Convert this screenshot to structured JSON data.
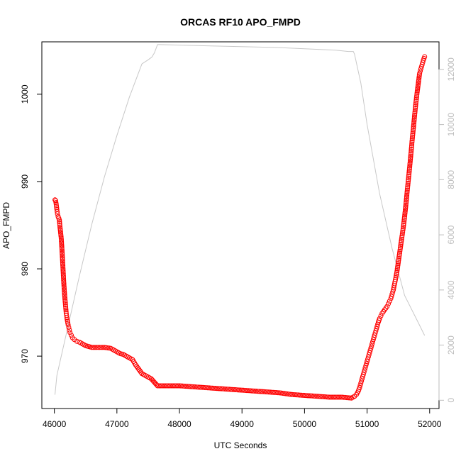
{
  "chart_data": {
    "type": "scatter",
    "title": "ORCAS RF10 APO_FMPD",
    "xlabel": "UTC Seconds",
    "ylabel": "APO_FMPD",
    "xlim": [
      45800,
      52150
    ],
    "ylim": [
      964.0,
      1006.0
    ],
    "y2lim": [
      -300,
      13000
    ],
    "x_ticks": [
      46000,
      47000,
      48000,
      49000,
      50000,
      51000,
      52000
    ],
    "y_ticks": [
      970,
      980,
      990,
      1000
    ],
    "y2_ticks": [
      0,
      2000,
      4000,
      6000,
      8000,
      10000,
      12000
    ],
    "grid": false,
    "colors": {
      "points": "#ff0000",
      "altitude_line": "#c8c8c8",
      "right_axis": "#bdbdbd"
    },
    "series": [
      {
        "type": "scatter",
        "axis": "left",
        "points": [
          [
            46010,
            987.9
          ],
          [
            46020,
            987.8
          ],
          [
            46030,
            987.4
          ],
          [
            46040,
            986.8
          ],
          [
            46050,
            986.3
          ],
          [
            46060,
            986.0
          ],
          [
            46080,
            985.6
          ],
          [
            46090,
            984.8
          ],
          [
            46110,
            983.5
          ],
          [
            46120,
            982.4
          ],
          [
            46130,
            981.1
          ],
          [
            46140,
            979.8
          ],
          [
            46150,
            978.5
          ],
          [
            46160,
            977.4
          ],
          [
            46170,
            976.5
          ],
          [
            46180,
            975.7
          ],
          [
            46190,
            974.9
          ],
          [
            46200,
            974.4
          ],
          [
            46210,
            974.0
          ],
          [
            46220,
            973.6
          ],
          [
            46230,
            973.3
          ],
          [
            46240,
            973.0
          ],
          [
            46250,
            972.7
          ],
          [
            46270,
            972.4
          ],
          [
            46290,
            972.1
          ],
          [
            46320,
            971.9
          ],
          [
            46360,
            971.7
          ],
          [
            46400,
            971.6
          ],
          [
            46450,
            971.4
          ],
          [
            46500,
            971.2
          ],
          [
            46550,
            971.1
          ],
          [
            46600,
            971.0
          ],
          [
            46700,
            971.0
          ],
          [
            46800,
            971.0
          ],
          [
            46900,
            970.9
          ],
          [
            46950,
            970.7
          ],
          [
            47000,
            970.5
          ],
          [
            47050,
            970.3
          ],
          [
            47100,
            970.2
          ],
          [
            47150,
            970.0
          ],
          [
            47200,
            969.8
          ],
          [
            47250,
            969.6
          ],
          [
            47300,
            969.0
          ],
          [
            47350,
            968.5
          ],
          [
            47400,
            968.0
          ],
          [
            47450,
            967.8
          ],
          [
            47500,
            967.6
          ],
          [
            47550,
            967.4
          ],
          [
            47600,
            967.0
          ],
          [
            47650,
            966.6
          ],
          [
            47700,
            966.6
          ],
          [
            47800,
            966.6
          ],
          [
            47900,
            966.6
          ],
          [
            48000,
            966.6
          ],
          [
            48200,
            966.5
          ],
          [
            48400,
            966.4
          ],
          [
            48600,
            966.3
          ],
          [
            48800,
            966.2
          ],
          [
            49000,
            966.1
          ],
          [
            49200,
            966.0
          ],
          [
            49400,
            965.9
          ],
          [
            49600,
            965.8
          ],
          [
            49800,
            965.6
          ],
          [
            50000,
            965.5
          ],
          [
            50200,
            965.4
          ],
          [
            50400,
            965.3
          ],
          [
            50600,
            965.3
          ],
          [
            50750,
            965.2
          ],
          [
            50800,
            965.4
          ],
          [
            50830,
            965.6
          ],
          [
            50860,
            966.0
          ],
          [
            50880,
            966.4
          ],
          [
            50900,
            966.9
          ],
          [
            50920,
            967.4
          ],
          [
            50940,
            967.9
          ],
          [
            50960,
            968.4
          ],
          [
            50980,
            968.9
          ],
          [
            51000,
            969.4
          ],
          [
            51020,
            969.9
          ],
          [
            51040,
            970.4
          ],
          [
            51060,
            970.9
          ],
          [
            51080,
            971.4
          ],
          [
            51100,
            971.9
          ],
          [
            51120,
            972.4
          ],
          [
            51140,
            972.9
          ],
          [
            51160,
            973.4
          ],
          [
            51180,
            973.9
          ],
          [
            51200,
            974.3
          ],
          [
            51220,
            974.6
          ],
          [
            51240,
            974.9
          ],
          [
            51260,
            975.1
          ],
          [
            51280,
            975.3
          ],
          [
            51300,
            975.5
          ],
          [
            51320,
            975.7
          ],
          [
            51340,
            976.0
          ],
          [
            51360,
            976.3
          ],
          [
            51380,
            976.6
          ],
          [
            51400,
            977.1
          ],
          [
            51420,
            977.6
          ],
          [
            51440,
            978.3
          ],
          [
            51460,
            979.0
          ],
          [
            51480,
            979.8
          ],
          [
            51500,
            980.8
          ],
          [
            51520,
            981.8
          ],
          [
            51540,
            982.8
          ],
          [
            51560,
            983.8
          ],
          [
            51580,
            984.8
          ],
          [
            51600,
            986.0
          ],
          [
            51620,
            987.3
          ],
          [
            51640,
            988.8
          ],
          [
            51660,
            990.2
          ],
          [
            51680,
            991.6
          ],
          [
            51700,
            993.1
          ],
          [
            51720,
            994.7
          ],
          [
            51740,
            996.1
          ],
          [
            51760,
            997.6
          ],
          [
            51780,
            999.0
          ],
          [
            51800,
            1000.2
          ],
          [
            51820,
            1001.3
          ],
          [
            51840,
            1002.4
          ],
          [
            51860,
            1002.9
          ],
          [
            51880,
            1003.4
          ],
          [
            51900,
            1003.9
          ],
          [
            51920,
            1004.3
          ]
        ]
      },
      {
        "type": "line",
        "axis": "right",
        "points": [
          [
            46010,
            200
          ],
          [
            46040,
            900
          ],
          [
            46100,
            1500
          ],
          [
            46200,
            2500
          ],
          [
            46400,
            4500
          ],
          [
            46600,
            6400
          ],
          [
            46800,
            8100
          ],
          [
            47000,
            9600
          ],
          [
            47200,
            11000
          ],
          [
            47400,
            12200
          ],
          [
            47500,
            12350
          ],
          [
            47560,
            12450
          ],
          [
            47600,
            12600
          ],
          [
            47650,
            12900
          ],
          [
            47700,
            12900
          ],
          [
            48500,
            12850
          ],
          [
            49500,
            12800
          ],
          [
            50500,
            12700
          ],
          [
            50700,
            12650
          ],
          [
            50780,
            12650
          ],
          [
            50800,
            12550
          ],
          [
            50900,
            11500
          ],
          [
            51000,
            10000
          ],
          [
            51200,
            7500
          ],
          [
            51400,
            5500
          ],
          [
            51600,
            3800
          ],
          [
            51800,
            2900
          ],
          [
            51920,
            2350
          ]
        ]
      }
    ]
  }
}
